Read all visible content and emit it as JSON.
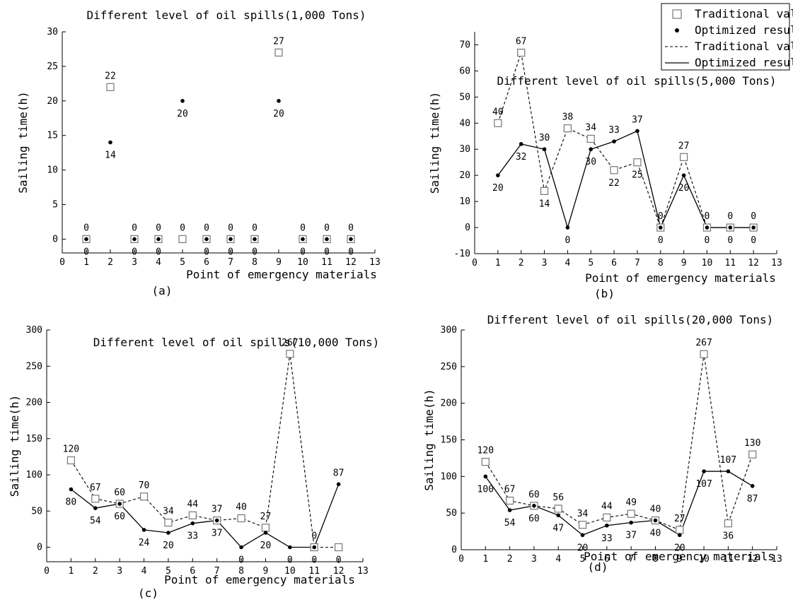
{
  "legend": {
    "items": [
      {
        "label": "Traditional value",
        "symbol": "square"
      },
      {
        "label": "Optimized result",
        "symbol": "dot"
      },
      {
        "label": "Traditional value",
        "symbol": "dashed-line"
      },
      {
        "label": "Optimized result",
        "symbol": "solid-line"
      }
    ]
  },
  "chart_data": [
    {
      "panel": "(a)",
      "type": "scatter",
      "title": "Different level of oil spills(1,000 Tons)",
      "xlabel": "Point of emergency materials",
      "ylabel": "Sailing time(h)",
      "xlim": [
        0,
        13
      ],
      "ylim": [
        -2,
        30
      ],
      "xticks": [
        0,
        1,
        2,
        3,
        4,
        5,
        6,
        7,
        8,
        9,
        10,
        11,
        12,
        13
      ],
      "yticks": [
        0,
        5,
        10,
        15,
        20,
        25,
        30
      ],
      "x": [
        1,
        2,
        3,
        4,
        5,
        6,
        7,
        8,
        9,
        10,
        11,
        12
      ],
      "series": [
        {
          "name": "Traditional value",
          "marker": "square",
          "line": false,
          "values": [
            0,
            22,
            0,
            0,
            0,
            0,
            0,
            0,
            27,
            0,
            0,
            0
          ],
          "labels": [
            "0",
            "22",
            "0",
            "0",
            "0",
            "0",
            "0",
            "0",
            "27",
            "0",
            "0",
            "0"
          ]
        },
        {
          "name": "Optimized result",
          "marker": "dot",
          "line": false,
          "values": [
            0,
            14,
            0,
            0,
            20,
            0,
            0,
            0,
            20,
            0,
            0,
            0
          ],
          "labels": [
            "0",
            "14",
            "0",
            "0",
            "20",
            "0",
            "0",
            "0",
            "20",
            "0",
            "0",
            "0"
          ]
        }
      ],
      "grid": false
    },
    {
      "panel": "(b)",
      "type": "line",
      "title": "Different level of oil spills(5,000 Tons)",
      "xlabel": "Point of emergency materials",
      "ylabel": "Sailing time(h)",
      "xlim": [
        0,
        13
      ],
      "ylim": [
        -10,
        75
      ],
      "xticks": [
        0,
        1,
        2,
        3,
        4,
        5,
        6,
        7,
        8,
        9,
        10,
        11,
        12,
        13
      ],
      "yticks": [
        -10,
        0,
        10,
        20,
        30,
        40,
        50,
        60,
        70
      ],
      "x": [
        1,
        2,
        3,
        4,
        5,
        6,
        7,
        8,
        9,
        10,
        11,
        12
      ],
      "series": [
        {
          "name": "Traditional value",
          "marker": "square",
          "line": "dashed",
          "values": [
            40,
            67,
            14,
            38,
            34,
            22,
            25,
            0,
            27,
            0,
            0,
            0
          ],
          "labels": [
            "40",
            "67",
            "14",
            "38",
            "34",
            "22",
            "25",
            "0",
            "27",
            "0",
            "0",
            "0"
          ]
        },
        {
          "name": "Optimized result",
          "marker": "dot",
          "line": "solid",
          "values": [
            20,
            32,
            30,
            0,
            30,
            33,
            37,
            0,
            20,
            0,
            0,
            0
          ],
          "labels": [
            "20",
            "32",
            "30",
            "0",
            "30",
            "33",
            "37",
            "0",
            "20",
            "0",
            "0",
            "0"
          ]
        }
      ],
      "grid": false
    },
    {
      "panel": "(c)",
      "type": "line",
      "title": "Different level of oil spills(10,000 Tons)",
      "xlabel": "Point of emergency materials",
      "ylabel": "Sailing time(h)",
      "xlim": [
        0,
        13
      ],
      "ylim": [
        -20,
        300
      ],
      "xticks": [
        0,
        1,
        2,
        3,
        4,
        5,
        6,
        7,
        8,
        9,
        10,
        11,
        12,
        13
      ],
      "yticks": [
        0,
        50,
        100,
        150,
        200,
        250,
        300
      ],
      "x": [
        1,
        2,
        3,
        4,
        5,
        6,
        7,
        8,
        9,
        10,
        11,
        12
      ],
      "series": [
        {
          "name": "Traditional value",
          "marker": "square",
          "line": "dashed",
          "values": [
            120,
            67,
            60,
            70,
            34,
            44,
            37,
            40,
            27,
            267,
            0,
            0
          ],
          "labels": [
            "120",
            "67",
            "60",
            "70",
            "34",
            "44",
            "37",
            "40",
            "27",
            "267",
            "0",
            "0"
          ]
        },
        {
          "name": "Optimized result",
          "marker": "dot",
          "line": "solid",
          "values": [
            80,
            54,
            60,
            24,
            20,
            33,
            37,
            0,
            20,
            0,
            0,
            87
          ],
          "labels": [
            "80",
            "54",
            "60",
            "24",
            "20",
            "33",
            "37",
            "0",
            "20",
            "0",
            "0",
            "87"
          ]
        }
      ],
      "grid": false
    },
    {
      "panel": "(d)",
      "type": "line",
      "title": "Different level of oil spills(20,000 Tons)",
      "xlabel": "Point of emergency materials",
      "ylabel": "Sailing time(h)",
      "xlim": [
        0,
        13
      ],
      "ylim": [
        0,
        300
      ],
      "xticks": [
        0,
        1,
        2,
        3,
        4,
        5,
        6,
        7,
        8,
        9,
        10,
        11,
        12,
        13
      ],
      "yticks": [
        0,
        50,
        100,
        150,
        200,
        250,
        300
      ],
      "x": [
        1,
        2,
        3,
        4,
        5,
        6,
        7,
        8,
        9,
        10,
        11,
        12
      ],
      "series": [
        {
          "name": "Traditional value",
          "marker": "square",
          "line": "dashed",
          "values": [
            120,
            67,
            60,
            56,
            34,
            44,
            49,
            40,
            27,
            267,
            36,
            130
          ],
          "labels": [
            "120",
            "67",
            "60",
            "56",
            "34",
            "44",
            "49",
            "40",
            "27",
            "267",
            "36",
            "130"
          ]
        },
        {
          "name": "Optimized result",
          "marker": "dot",
          "line": "solid",
          "values": [
            100,
            54,
            60,
            47,
            20,
            33,
            37,
            40,
            20,
            107,
            107,
            87
          ],
          "labels": [
            "100",
            "54",
            "60",
            "47",
            "20",
            "33",
            "37",
            "40",
            "20",
            "107",
            "107",
            "87"
          ]
        }
      ],
      "grid": false
    }
  ]
}
